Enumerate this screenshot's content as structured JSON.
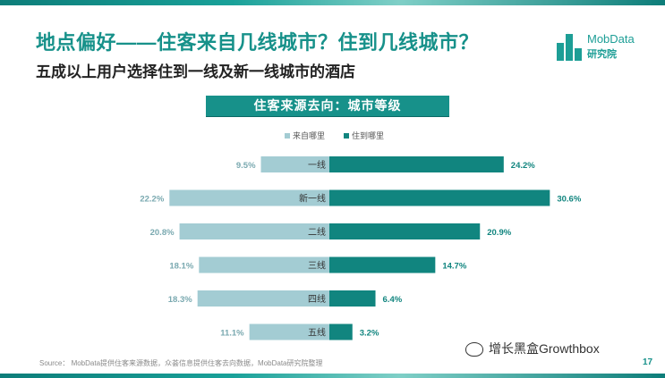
{
  "title": "地点偏好——住客来自几线城市？住到几线城市？",
  "subtitle": "五成以上用户选择住到一线及新一线城市的酒店",
  "logo": {
    "name": "MobData",
    "sub": "研究院",
    "icon": "bar-logo-icon"
  },
  "banner": "住客来源去向：城市等级",
  "footer": "Source： MobData提供住客来源数据，众荟信息提供住客去向数据，MobData研究院整理",
  "page_number": "17",
  "watermark": {
    "icon": "wechat-icon",
    "text": "增长黑盒Growthbox"
  },
  "colors": {
    "left": "#a3ccd3",
    "right": "#11857f",
    "title": "#17918a",
    "label": "#7aa9b0"
  },
  "chart_data": {
    "type": "bar",
    "orientation": "horizontal-diverging",
    "categories": [
      "一线",
      "新一线",
      "二线",
      "三线",
      "四线",
      "五线"
    ],
    "series": [
      {
        "name": "来自哪里",
        "values": [
          9.5,
          22.2,
          20.8,
          18.1,
          18.3,
          11.1
        ],
        "labels": [
          "9.5%",
          "22.2%",
          "20.8%",
          "18.1%",
          "18.3%",
          "11.1%"
        ]
      },
      {
        "name": "住到哪里",
        "values": [
          24.2,
          30.6,
          20.9,
          14.7,
          6.4,
          3.2
        ],
        "labels": [
          "24.2%",
          "30.6%",
          "20.9%",
          "14.7%",
          "6.4%",
          "3.2%"
        ]
      }
    ],
    "unit": "%",
    "legend_position": "top-center"
  }
}
